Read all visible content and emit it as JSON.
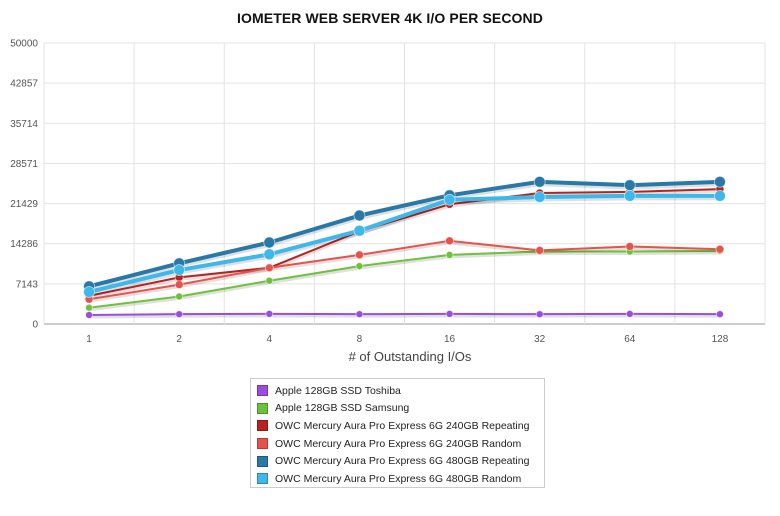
{
  "chart_data": {
    "type": "line",
    "title": "IOMETER WEB SERVER 4K I/O PER SECOND",
    "xlabel": "# of Outstanding I/Os",
    "ylabel": "",
    "x": [
      "1",
      "2",
      "4",
      "8",
      "16",
      "32",
      "64",
      "128"
    ],
    "y_ticks": [
      "0",
      "7143",
      "14286",
      "21429",
      "28571",
      "35714",
      "42857",
      "50000"
    ],
    "ylim": [
      0,
      50000
    ],
    "grid": true,
    "legend_placement": "bottom",
    "series": [
      {
        "name": "Apple 128GB SSD Toshiba",
        "color": "#9b4de0",
        "values": [
          1600,
          1750,
          1800,
          1750,
          1800,
          1750,
          1800,
          1750
        ]
      },
      {
        "name": "Apple 128GB SSD Samsung",
        "color": "#6ec13a",
        "values": [
          2900,
          4900,
          7700,
          10300,
          12300,
          12900,
          12900,
          13000
        ]
      },
      {
        "name": "OWC Mercury Aura Pro Express 6G 240GB Repeating",
        "color": "#b7231e",
        "values": [
          5000,
          8300,
          10000,
          16500,
          21300,
          23300,
          23500,
          24000
        ]
      },
      {
        "name": "OWC Mercury Aura Pro Express 6G 240GB Random",
        "color": "#e8524a",
        "values": [
          4400,
          7000,
          10000,
          12300,
          14800,
          13100,
          13800,
          13300
        ]
      },
      {
        "name": "OWC Mercury Aura Pro Express 6G 480GB Repeating",
        "color": "#2878a8",
        "values": [
          6700,
          10800,
          14500,
          19300,
          22900,
          25300,
          24700,
          25300
        ]
      },
      {
        "name": "OWC Mercury Aura Pro Express 6G 480GB Random",
        "color": "#3eb7ea",
        "values": [
          5700,
          9600,
          12400,
          16600,
          22100,
          22600,
          22800,
          22800
        ]
      }
    ]
  }
}
